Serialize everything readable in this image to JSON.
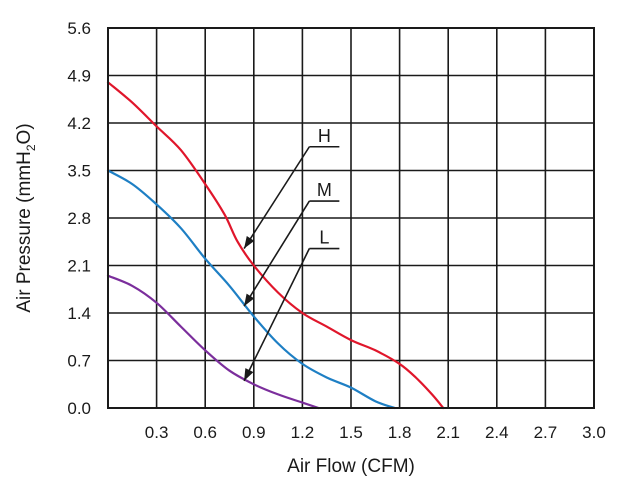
{
  "chart_data": {
    "type": "line",
    "title": "",
    "xlabel": "Air Flow (CFM)",
    "ylabel": "Air Pressure (mmH₂O)",
    "xlim": [
      0,
      3.0
    ],
    "ylim": [
      0,
      5.6
    ],
    "x_ticks": [
      0.3,
      0.6,
      0.9,
      1.2,
      1.5,
      1.8,
      2.1,
      2.4,
      2.7,
      3.0
    ],
    "x_tick_labels": [
      "0.3",
      "0.6",
      "0.9",
      "1.2",
      "1.5",
      "1.8",
      "2.1",
      "2.4",
      "2.7",
      "3.0"
    ],
    "y_ticks": [
      0,
      0.7,
      1.4,
      2.1,
      2.8,
      3.5,
      4.2,
      4.9,
      5.6
    ],
    "y_tick_labels": [
      "0.0",
      "0.7",
      "1.4",
      "2.1",
      "2.8",
      "3.5",
      "4.2",
      "4.9",
      "5.6"
    ],
    "grid": true,
    "series": [
      {
        "name": "H",
        "color": "#e0162b",
        "x": [
          0.0,
          0.15,
          0.3,
          0.45,
          0.6,
          0.72,
          0.8,
          0.9,
          1.05,
          1.2,
          1.35,
          1.5,
          1.65,
          1.8,
          1.9,
          2.0,
          2.07
        ],
        "y": [
          4.8,
          4.5,
          4.15,
          3.8,
          3.3,
          2.85,
          2.45,
          2.1,
          1.7,
          1.4,
          1.2,
          1.0,
          0.85,
          0.65,
          0.45,
          0.2,
          0.0
        ]
      },
      {
        "name": "M",
        "color": "#1e7fc4",
        "x": [
          0.0,
          0.15,
          0.3,
          0.45,
          0.6,
          0.75,
          0.9,
          1.05,
          1.2,
          1.35,
          1.5,
          1.65,
          1.77
        ],
        "y": [
          3.5,
          3.3,
          3.0,
          2.65,
          2.2,
          1.8,
          1.35,
          0.95,
          0.65,
          0.45,
          0.3,
          0.1,
          0.0
        ]
      },
      {
        "name": "L",
        "color": "#7b2e9c",
        "x": [
          0.0,
          0.15,
          0.3,
          0.45,
          0.6,
          0.75,
          0.9,
          1.05,
          1.2,
          1.3
        ],
        "y": [
          1.95,
          1.8,
          1.55,
          1.2,
          0.85,
          0.55,
          0.35,
          0.2,
          0.08,
          0.0
        ]
      }
    ],
    "annotations": [
      {
        "text": "H",
        "points_to_series": "H",
        "target": {
          "x": 0.84,
          "y": 2.35
        },
        "label_at": {
          "x": 1.28,
          "y": 3.85
        }
      },
      {
        "text": "M",
        "points_to_series": "M",
        "target": {
          "x": 0.84,
          "y": 1.5
        },
        "label_at": {
          "x": 1.28,
          "y": 3.05
        }
      },
      {
        "text": "L",
        "points_to_series": "L",
        "target": {
          "x": 0.84,
          "y": 0.4
        },
        "label_at": {
          "x": 1.28,
          "y": 2.35
        }
      }
    ]
  }
}
